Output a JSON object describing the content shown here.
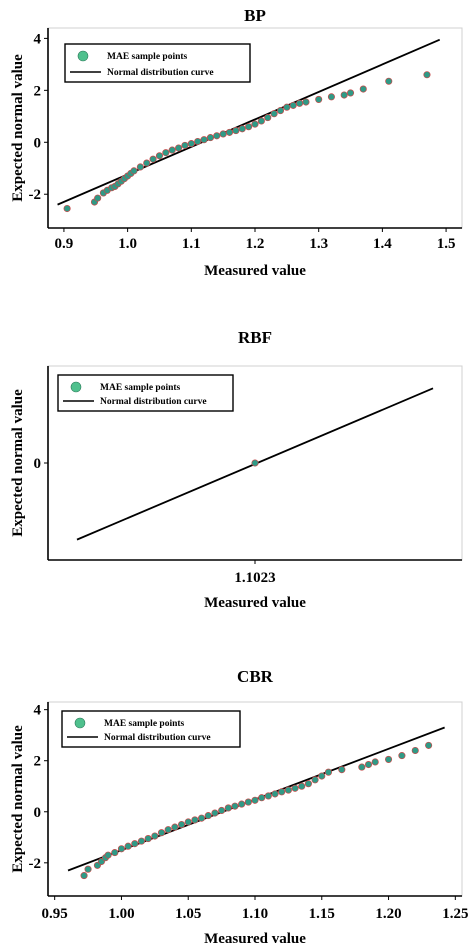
{
  "chart_data": [
    {
      "type": "scatter",
      "title": "BP",
      "xlabel": "Measured value",
      "ylabel": "Expected normal value",
      "xlim": [
        0.875,
        1.525
      ],
      "ylim": [
        -3.3,
        4.4
      ],
      "xticks": [
        "0.9",
        "1.0",
        "1.1",
        "1.2",
        "1.3",
        "1.4",
        "1.5"
      ],
      "xtick_values": [
        0.9,
        1.0,
        1.1,
        1.2,
        1.3,
        1.4,
        1.5
      ],
      "yticks": [
        "-2",
        "0",
        "2",
        "4"
      ],
      "ytick_values": [
        -2,
        0,
        2,
        4
      ],
      "legend": {
        "placement": "top-left",
        "points_label": "MAE sample points",
        "curve_label": "Normal distribution curve"
      },
      "curve": {
        "x": [
          0.89,
          1.49
        ],
        "y": [
          -2.4,
          3.95
        ]
      },
      "series": [
        {
          "name": "MAE sample points",
          "x": [
            0.905,
            0.948,
            0.953,
            0.962,
            0.968,
            0.975,
            0.98,
            0.985,
            0.99,
            0.995,
            1.0,
            1.005,
            1.01,
            1.02,
            1.03,
            1.04,
            1.05,
            1.06,
            1.07,
            1.08,
            1.09,
            1.1,
            1.11,
            1.12,
            1.13,
            1.14,
            1.15,
            1.16,
            1.17,
            1.18,
            1.19,
            1.2,
            1.21,
            1.22,
            1.23,
            1.24,
            1.25,
            1.26,
            1.27,
            1.28,
            1.3,
            1.32,
            1.34,
            1.35,
            1.37,
            1.41,
            1.47
          ],
          "y": [
            -2.55,
            -2.3,
            -2.15,
            -1.95,
            -1.85,
            -1.75,
            -1.7,
            -1.6,
            -1.5,
            -1.4,
            -1.3,
            -1.2,
            -1.1,
            -0.95,
            -0.8,
            -0.65,
            -0.52,
            -0.4,
            -0.3,
            -0.22,
            -0.12,
            -0.05,
            0.03,
            0.1,
            0.18,
            0.25,
            0.32,
            0.38,
            0.45,
            0.52,
            0.6,
            0.7,
            0.82,
            0.95,
            1.1,
            1.22,
            1.35,
            1.42,
            1.5,
            1.55,
            1.65,
            1.75,
            1.82,
            1.9,
            2.05,
            2.35,
            2.6
          ]
        }
      ]
    },
    {
      "type": "scatter",
      "title": "RBF",
      "xlabel": "Measured value",
      "ylabel": "Expected normal value",
      "xlim": [
        0.0,
        1.0
      ],
      "ylim": [
        -1.0,
        1.0
      ],
      "xticks": [
        "1.1023"
      ],
      "xtick_values": [
        0.5
      ],
      "yticks": [
        "0"
      ],
      "ytick_values": [
        0.0
      ],
      "legend": {
        "placement": "top-left",
        "points_label": "MAE sample points",
        "curve_label": "Normal distribution curve"
      },
      "curve": {
        "x": [
          0.07,
          0.93
        ],
        "y": [
          -0.79,
          0.77
        ]
      },
      "series": [
        {
          "name": "MAE sample points",
          "x": [
            0.5
          ],
          "y": [
            0.0
          ]
        }
      ]
    },
    {
      "type": "scatter",
      "title": "CBR",
      "xlabel": "Measured value",
      "ylabel": "Expected normal value",
      "xlim": [
        0.945,
        1.255
      ],
      "ylim": [
        -3.3,
        4.3
      ],
      "xticks": [
        "0.95",
        "1.00",
        "1.05",
        "1.10",
        "1.15",
        "1.20",
        "1.25"
      ],
      "xtick_values": [
        0.95,
        1.0,
        1.05,
        1.1,
        1.15,
        1.2,
        1.25
      ],
      "yticks": [
        "-2",
        "0",
        "2",
        "4"
      ],
      "ytick_values": [
        -2,
        0,
        2,
        4
      ],
      "legend": {
        "placement": "top-left",
        "points_label": "MAE sample points",
        "curve_label": "Normal distribution curve"
      },
      "curve": {
        "x": [
          0.96,
          1.242
        ],
        "y": [
          -2.3,
          3.3
        ]
      },
      "series": [
        {
          "name": "MAE sample points",
          "x": [
            0.972,
            0.975,
            0.982,
            0.985,
            0.988,
            0.99,
            0.995,
            1.0,
            1.005,
            1.01,
            1.015,
            1.02,
            1.025,
            1.03,
            1.035,
            1.04,
            1.045,
            1.05,
            1.055,
            1.06,
            1.065,
            1.07,
            1.075,
            1.08,
            1.085,
            1.09,
            1.095,
            1.1,
            1.105,
            1.11,
            1.115,
            1.12,
            1.125,
            1.13,
            1.135,
            1.14,
            1.145,
            1.15,
            1.155,
            1.165,
            1.18,
            1.185,
            1.19,
            1.2,
            1.21,
            1.22,
            1.23
          ],
          "y": [
            -2.5,
            -2.25,
            -2.1,
            -1.95,
            -1.8,
            -1.7,
            -1.6,
            -1.45,
            -1.35,
            -1.25,
            -1.15,
            -1.05,
            -0.95,
            -0.82,
            -0.7,
            -0.6,
            -0.5,
            -0.4,
            -0.32,
            -0.25,
            -0.15,
            -0.05,
            0.05,
            0.15,
            0.22,
            0.3,
            0.38,
            0.45,
            0.55,
            0.62,
            0.7,
            0.78,
            0.85,
            0.92,
            1.0,
            1.1,
            1.25,
            1.4,
            1.55,
            1.65,
            1.75,
            1.85,
            1.95,
            2.05,
            2.2,
            2.4,
            2.6
          ]
        }
      ]
    }
  ]
}
